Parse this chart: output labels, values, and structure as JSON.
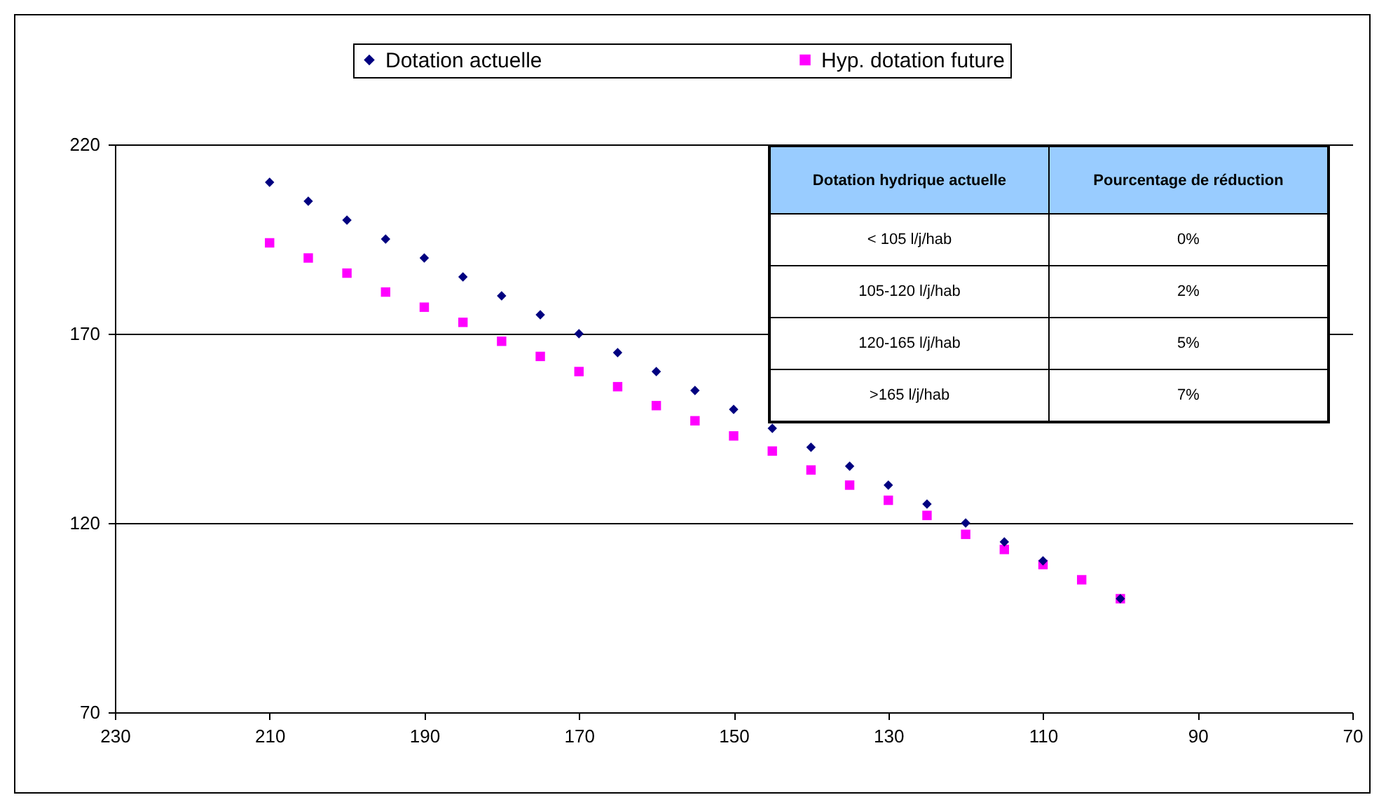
{
  "chart_data": {
    "type": "scatter",
    "x": [
      210,
      205,
      200,
      195,
      190,
      185,
      180,
      175,
      170,
      165,
      160,
      155,
      150,
      145,
      140,
      135,
      130,
      125,
      120,
      115,
      110,
      105,
      100
    ],
    "series": [
      {
        "name": "Dotation actuelle",
        "color": "#000080",
        "marker": "diamond",
        "values": [
          210,
          205,
          200,
          195,
          190,
          185,
          180,
          175,
          170,
          165,
          160,
          155,
          150,
          145,
          140,
          135,
          130,
          125,
          120,
          115,
          110,
          null,
          100
        ]
      },
      {
        "name": "Hyp. dotation future",
        "color": "#ff00ff",
        "marker": "square",
        "values": [
          194,
          190,
          186,
          181,
          177,
          173,
          168,
          164,
          160,
          156,
          151,
          147,
          143,
          139,
          134,
          130,
          126,
          122,
          117,
          113,
          109,
          105,
          100
        ]
      }
    ],
    "xlim": [
      230,
      70
    ],
    "xticks": [
      230,
      210,
      190,
      170,
      150,
      130,
      110,
      90,
      70
    ],
    "ylim": [
      70,
      220
    ],
    "yticks": [
      70,
      120,
      170,
      220
    ],
    "grid": "y",
    "legend": "top",
    "annotations": [
      "Dotation hydrique actuelle",
      "Pourcentage de réduction",
      "< 105 l/j/hab",
      "0%",
      "105-120 l/j/hab",
      "2%",
      "120-165 l/j/hab",
      "5%",
      ">165 l/j/hab",
      "7%"
    ]
  }
}
